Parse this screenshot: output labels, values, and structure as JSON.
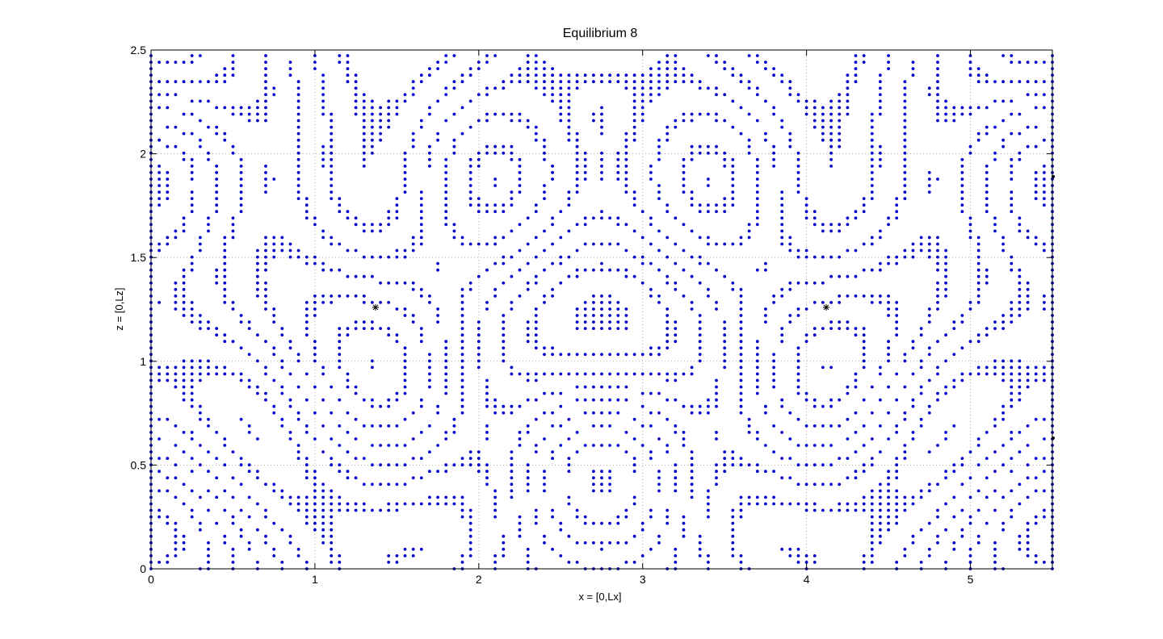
{
  "chart_data": {
    "type": "scatter",
    "title": "Equilibrium 8",
    "xlabel": "x = [0,Lx]",
    "ylabel": "z = [0,Lz]",
    "xlim": [
      0,
      5.5
    ],
    "ylim": [
      0,
      2.5
    ],
    "xticks": [
      "0",
      "1",
      "2",
      "3",
      "4",
      "5"
    ],
    "yticks": [
      "0",
      "0.5",
      "1",
      "1.5",
      "2",
      "2.5"
    ],
    "grid": true,
    "marker_color": "#0000cc",
    "special_color": "#000000",
    "grid_step_x": 0.05,
    "grid_step_z": 0.0313,
    "special_points": [
      {
        "x": 1.37,
        "y": 1.26,
        "marker": "*"
      },
      {
        "x": 4.12,
        "y": 1.26,
        "marker": "*"
      },
      {
        "x": 5.5,
        "y": 1.89,
        "marker": "."
      },
      {
        "x": 5.5,
        "y": 0.63,
        "marker": "."
      }
    ]
  }
}
